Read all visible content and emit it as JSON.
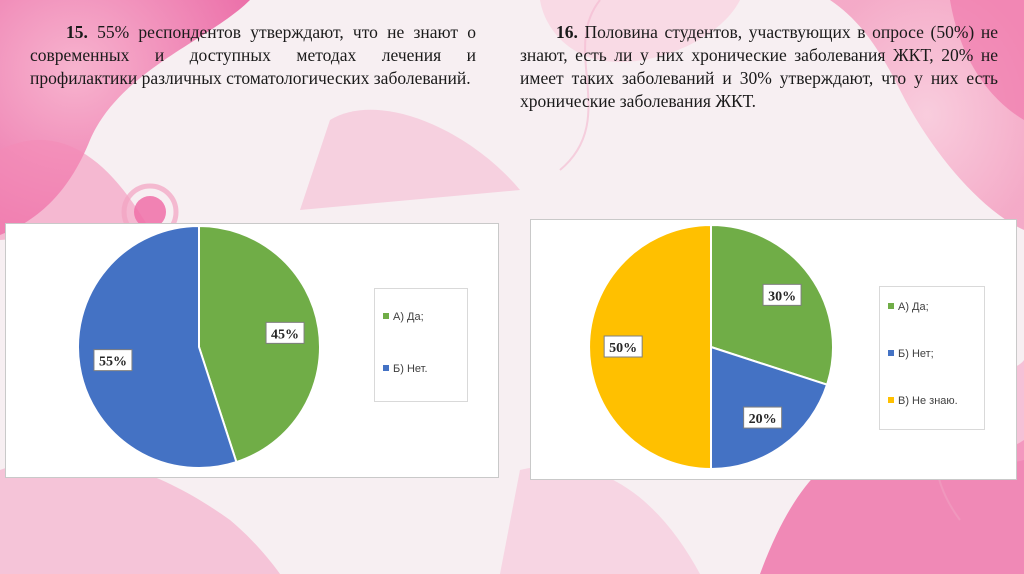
{
  "slide": {
    "item15": {
      "number": "15.",
      "text": " 55% респондентов утверждают, что не знают о современных и доступных методах лечения и профилактики различных стоматологических заболеваний."
    },
    "item16": {
      "number": "16.",
      "text": " Половина студентов, участвующих в опросе (50%) не знают, есть ли у них хронические заболевания ЖКТ, 20% не имеет таких заболеваний и 30% утверждают, что у них есть хронические заболевания ЖКТ."
    }
  },
  "chart_data": [
    {
      "type": "pie",
      "categories": [
        "А) Да;",
        "Б) Нет."
      ],
      "values": [
        45,
        55
      ],
      "data_labels": [
        "45%",
        "55%"
      ],
      "colors": [
        "#70ad47",
        "#4472c4"
      ],
      "legend_placement": "right"
    },
    {
      "type": "pie",
      "categories": [
        "А) Да;",
        "Б) Нет;",
        "В) Не знаю."
      ],
      "values": [
        30,
        20,
        50
      ],
      "data_labels": [
        "30%",
        "20%",
        "50%"
      ],
      "colors": [
        "#70ad47",
        "#4472c4",
        "#ffc000"
      ],
      "legend_placement": "right"
    }
  ]
}
